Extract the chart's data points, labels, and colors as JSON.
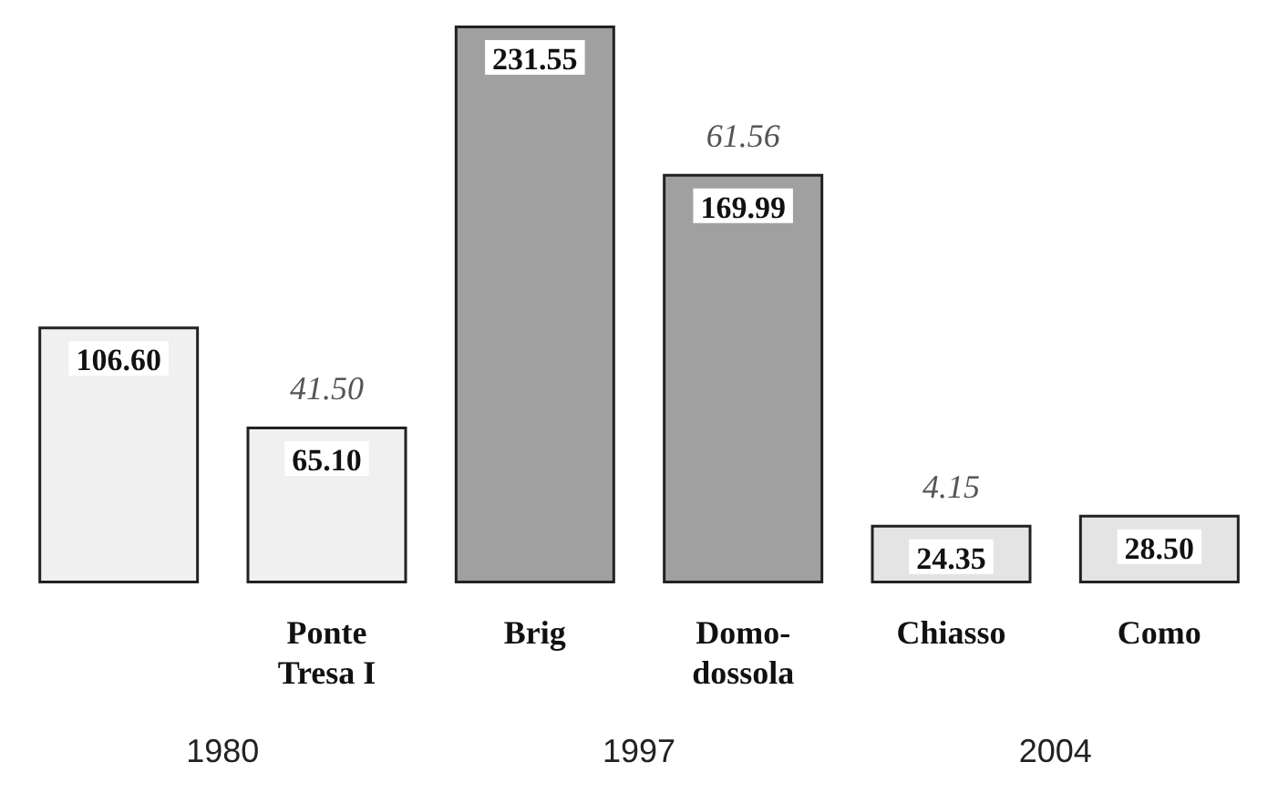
{
  "chart_data": {
    "type": "bar",
    "categories": [
      null,
      "Ponte\nTresa I",
      "Brig",
      "Domo-\ndossola",
      "Chiasso",
      "Como"
    ],
    "values": [
      106.6,
      65.1,
      231.55,
      169.99,
      24.35,
      28.5
    ],
    "value_labels": [
      "106.60",
      "65.10",
      "231.55",
      "169.99",
      "24.35",
      "28.50"
    ],
    "colors": [
      "#f0f0f0",
      "#f0f0f0",
      "#a0a0a0",
      "#a0a0a0",
      "#e4e4e4",
      "#e4e4e4"
    ],
    "annotations": [
      {
        "text": "41.50",
        "x": "Ponte\nTresa I",
        "y": 65.1
      },
      {
        "text": "61.56",
        "x": "Domo-\ndossola",
        "y": 169.99
      },
      {
        "text": "4.15",
        "x": "Chiasso",
        "y": 24.35
      },
      "1980",
      "1997",
      "2004"
    ]
  }
}
